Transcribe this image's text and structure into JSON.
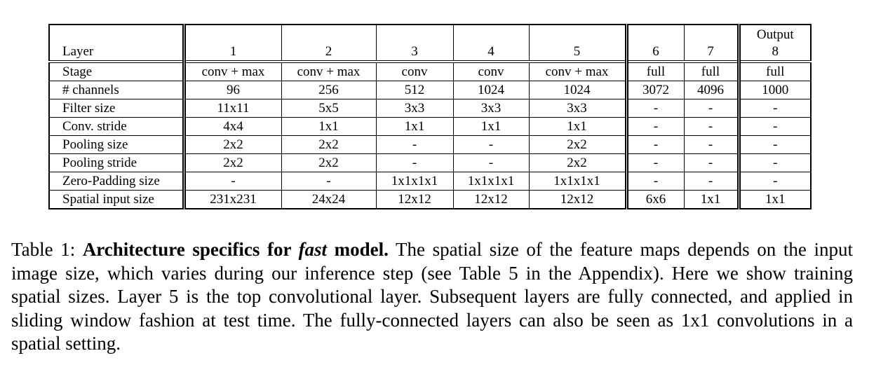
{
  "table": {
    "header": {
      "layer_label": "Layer",
      "columns": [
        {
          "top": "",
          "bottom": "1"
        },
        {
          "top": "",
          "bottom": "2"
        },
        {
          "top": "",
          "bottom": "3"
        },
        {
          "top": "",
          "bottom": "4"
        },
        {
          "top": "",
          "bottom": "5"
        },
        {
          "top": "",
          "bottom": "6"
        },
        {
          "top": "",
          "bottom": "7"
        },
        {
          "top": "Output",
          "bottom": "8"
        }
      ]
    },
    "rows": [
      {
        "label": "Stage",
        "cells": [
          "conv + max",
          "conv + max",
          "conv",
          "conv",
          "conv + max",
          "full",
          "full",
          "full"
        ]
      },
      {
        "label": "# channels",
        "cells": [
          "96",
          "256",
          "512",
          "1024",
          "1024",
          "3072",
          "4096",
          "1000"
        ]
      },
      {
        "label": "Filter size",
        "cells": [
          "11x11",
          "5x5",
          "3x3",
          "3x3",
          "3x3",
          "-",
          "-",
          "-"
        ]
      },
      {
        "label": "Conv. stride",
        "cells": [
          "4x4",
          "1x1",
          "1x1",
          "1x1",
          "1x1",
          "-",
          "-",
          "-"
        ]
      },
      {
        "label": "Pooling size",
        "cells": [
          "2x2",
          "2x2",
          "-",
          "-",
          "2x2",
          "-",
          "-",
          "-"
        ]
      },
      {
        "label": "Pooling stride",
        "cells": [
          "2x2",
          "2x2",
          "-",
          "-",
          "2x2",
          "-",
          "-",
          "-"
        ]
      },
      {
        "label": "Zero-Padding size",
        "cells": [
          "-",
          "-",
          "1x1x1x1",
          "1x1x1x1",
          "1x1x1x1",
          "-",
          "-",
          "-"
        ]
      },
      {
        "label": "Spatial input size",
        "cells": [
          "231x231",
          "24x24",
          "12x12",
          "12x12",
          "12x12",
          "6x6",
          "1x1",
          "1x1"
        ]
      }
    ]
  },
  "caption": {
    "prefix": "Table 1: ",
    "bold_1": "Architecture specifics for ",
    "bold_italic": "fast",
    "bold_2": " model.",
    "body": " The spatial size of the feature maps depends on the input image size, which varies during our inference step (see Table 5 in the Appendix). Here we show training spatial sizes. Layer 5 is the top convolutional layer. Subsequent layers are fully connected, and applied in sliding window fashion at test time. The fully-connected layers can also be seen as 1x1 convolutions in a spatial setting."
  }
}
